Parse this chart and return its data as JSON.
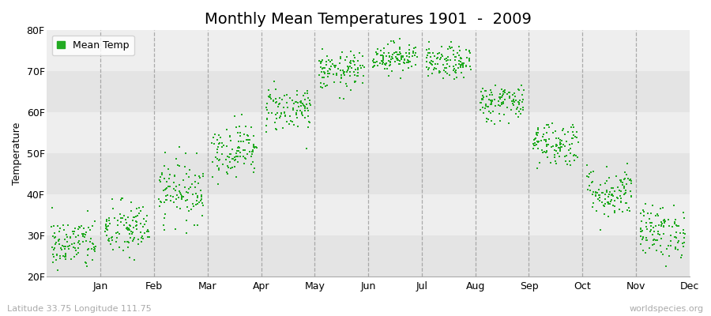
{
  "title": "Monthly Mean Temperatures 1901  -  2009",
  "ylabel": "Temperature",
  "ylim": [
    20,
    80
  ],
  "ytick_labels": [
    "20F",
    "30F",
    "40F",
    "50F",
    "60F",
    "70F",
    "80F"
  ],
  "ytick_values": [
    20,
    30,
    40,
    50,
    60,
    70,
    80
  ],
  "months": [
    "Jan",
    "Feb",
    "Mar",
    "Apr",
    "May",
    "Jun",
    "Jul",
    "Aug",
    "Sep",
    "Oct",
    "Nov",
    "Dec"
  ],
  "monthly_means": [
    28.0,
    31.5,
    41.0,
    51.0,
    61.0,
    70.0,
    73.5,
    72.0,
    62.5,
    52.5,
    40.5,
    31.0
  ],
  "monthly_stds": [
    3.2,
    3.5,
    3.8,
    3.2,
    2.8,
    2.3,
    1.8,
    2.0,
    2.3,
    2.8,
    3.2,
    3.2
  ],
  "n_years": 109,
  "dot_color": "#22aa22",
  "dot_size": 3,
  "background_color": "#ffffff",
  "plot_bg_light": "#eeeeee",
  "plot_bg_dark": "#e4e4e4",
  "dashed_color": "#999999",
  "legend_label": "Mean Temp",
  "footer_left": "Latitude 33.75 Longitude 111.75",
  "footer_right": "worldspecies.org",
  "title_fontsize": 14,
  "axis_label_fontsize": 9,
  "tick_fontsize": 9,
  "footer_fontsize": 8
}
